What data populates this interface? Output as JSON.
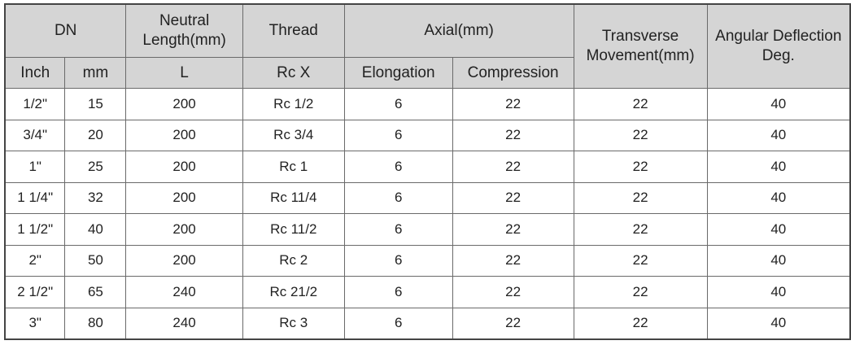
{
  "header": {
    "dn": "DN",
    "neutral_length": "Neutral Length(mm)",
    "thread": "Thread",
    "axial": "Axial(mm)",
    "transverse": "Transverse Movement(mm)",
    "angular": "Angular Deflection Deg.",
    "inch": "Inch",
    "mm": "mm",
    "l": "L",
    "rc_x": "Rc X",
    "elongation": "Elongation",
    "compression": "Compression"
  },
  "rows": [
    [
      "1/2\"",
      "15",
      "200",
      "Rc 1/2",
      "6",
      "22",
      "22",
      "40"
    ],
    [
      "3/4\"",
      "20",
      "200",
      "Rc 3/4",
      "6",
      "22",
      "22",
      "40"
    ],
    [
      "1\"",
      "25",
      "200",
      "Rc 1",
      "6",
      "22",
      "22",
      "40"
    ],
    [
      "1 1/4\"",
      "32",
      "200",
      "Rc 11/4",
      "6",
      "22",
      "22",
      "40"
    ],
    [
      "1 1/2\"",
      "40",
      "200",
      "Rc 11/2",
      "6",
      "22",
      "22",
      "40"
    ],
    [
      "2\"",
      "50",
      "200",
      "Rc 2",
      "6",
      "22",
      "22",
      "40"
    ],
    [
      "2 1/2\"",
      "65",
      "240",
      "Rc 21/2",
      "6",
      "22",
      "22",
      "40"
    ],
    [
      "3\"",
      "80",
      "240",
      "Rc 3",
      "6",
      "22",
      "22",
      "40"
    ]
  ]
}
